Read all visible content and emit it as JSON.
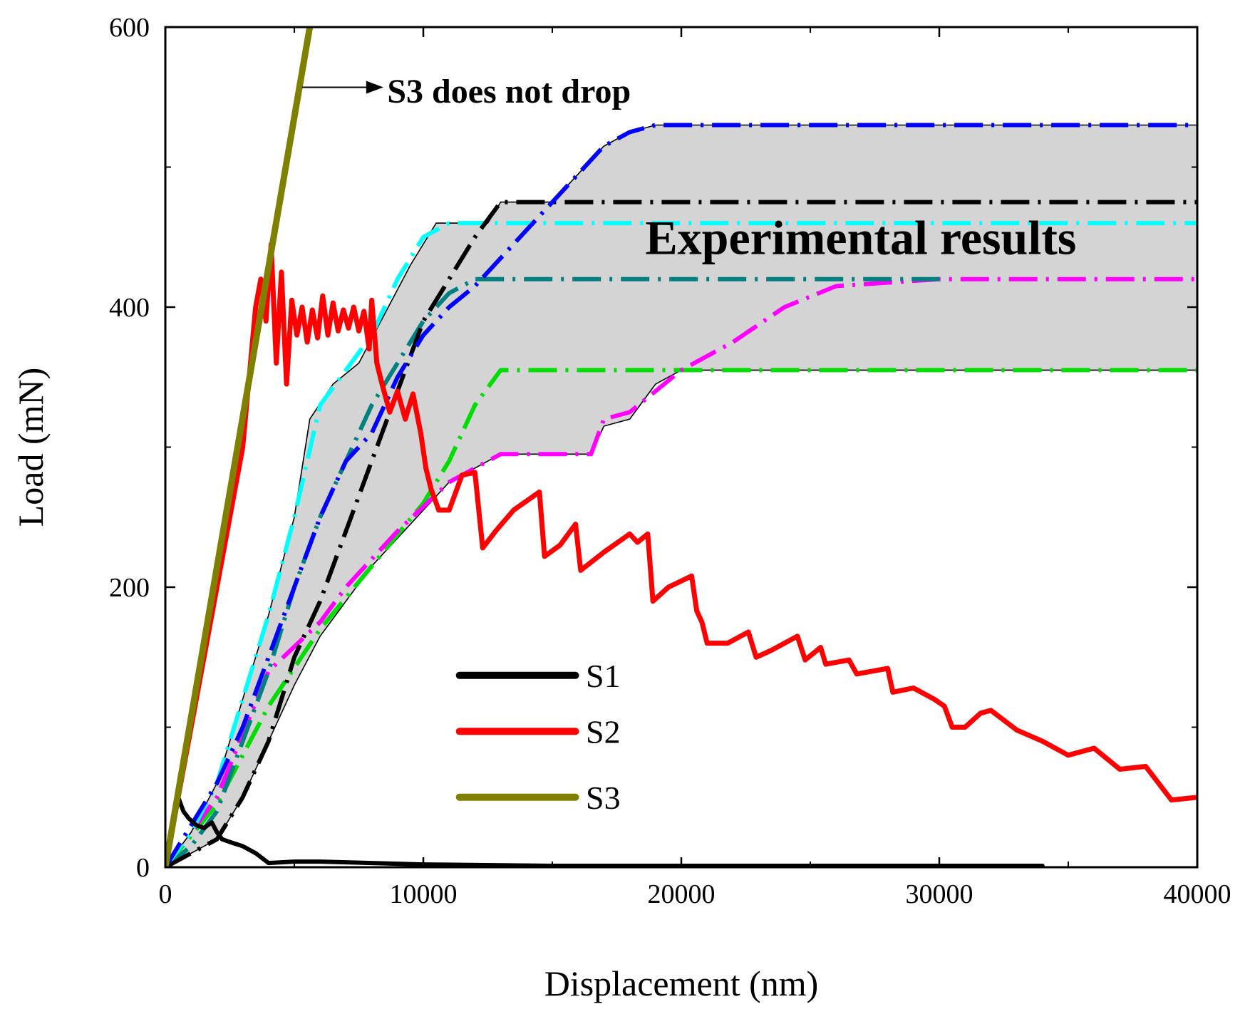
{
  "chart_data": {
    "type": "line",
    "xlabel": "Displacement (nm)",
    "ylabel": "Load (mN)",
    "xlim": [
      0,
      40000
    ],
    "ylim": [
      0,
      600
    ],
    "x_ticks": [
      0,
      10000,
      20000,
      30000,
      40000
    ],
    "x_tick_labels": [
      "0",
      "10000",
      "20000",
      "30000",
      "40000"
    ],
    "y_ticks": [
      0,
      200,
      400,
      600
    ],
    "y_tick_labels": [
      "0",
      "200",
      "400",
      "600"
    ],
    "grid": false,
    "legend": {
      "position": "bottom-center",
      "entries": [
        "S1",
        "S2",
        "S3"
      ]
    },
    "annotations": {
      "s3_note": "S3 does not drop",
      "band_label": "Experimental results"
    },
    "series": [
      {
        "name": "S1",
        "color": "#000000",
        "style": "solid",
        "in_legend": true,
        "points": [
          [
            0,
            0
          ],
          [
            300,
            30
          ],
          [
            500,
            50
          ],
          [
            700,
            40
          ],
          [
            900,
            35
          ],
          [
            1200,
            30
          ],
          [
            1500,
            28
          ],
          [
            1800,
            32
          ],
          [
            2000,
            25
          ],
          [
            2200,
            20
          ],
          [
            2500,
            18
          ],
          [
            3000,
            15
          ],
          [
            3500,
            10
          ],
          [
            4000,
            3
          ],
          [
            5000,
            4
          ],
          [
            6000,
            4
          ],
          [
            8000,
            3
          ],
          [
            10000,
            2
          ],
          [
            15000,
            1
          ],
          [
            20000,
            1
          ],
          [
            25000,
            1
          ],
          [
            30000,
            1
          ],
          [
            34000,
            1
          ]
        ]
      },
      {
        "name": "S2",
        "color": "#ff0000",
        "style": "solid",
        "in_legend": true,
        "points": [
          [
            0,
            0
          ],
          [
            1000,
            100
          ],
          [
            2000,
            200
          ],
          [
            2500,
            250
          ],
          [
            3000,
            300
          ],
          [
            3300,
            360
          ],
          [
            3500,
            400
          ],
          [
            3700,
            420
          ],
          [
            3900,
            390
          ],
          [
            4100,
            445
          ],
          [
            4300,
            360
          ],
          [
            4500,
            425
          ],
          [
            4700,
            345
          ],
          [
            4900,
            405
          ],
          [
            5100,
            380
          ],
          [
            5300,
            400
          ],
          [
            5500,
            375
          ],
          [
            5700,
            398
          ],
          [
            5900,
            378
          ],
          [
            6100,
            408
          ],
          [
            6300,
            380
          ],
          [
            6500,
            403
          ],
          [
            6700,
            383
          ],
          [
            6900,
            398
          ],
          [
            7100,
            385
          ],
          [
            7300,
            400
          ],
          [
            7500,
            383
          ],
          [
            7700,
            397
          ],
          [
            7900,
            370
          ],
          [
            8000,
            405
          ],
          [
            8200,
            360
          ],
          [
            8400,
            345
          ],
          [
            8700,
            325
          ],
          [
            9000,
            340
          ],
          [
            9300,
            320
          ],
          [
            9600,
            338
          ],
          [
            9900,
            310
          ],
          [
            10100,
            285
          ],
          [
            10300,
            270
          ],
          [
            10600,
            255
          ],
          [
            11000,
            255
          ],
          [
            11500,
            280
          ],
          [
            12000,
            282
          ],
          [
            12300,
            228
          ],
          [
            12800,
            240
          ],
          [
            13500,
            255
          ],
          [
            14500,
            268
          ],
          [
            14700,
            222
          ],
          [
            15300,
            230
          ],
          [
            15900,
            245
          ],
          [
            16100,
            212
          ],
          [
            17000,
            225
          ],
          [
            18000,
            238
          ],
          [
            18300,
            232
          ],
          [
            18700,
            238
          ],
          [
            18900,
            190
          ],
          [
            19500,
            200
          ],
          [
            20400,
            208
          ],
          [
            20600,
            183
          ],
          [
            20800,
            175
          ],
          [
            21000,
            160
          ],
          [
            21800,
            160
          ],
          [
            22600,
            168
          ],
          [
            22900,
            150
          ],
          [
            23500,
            155
          ],
          [
            24500,
            165
          ],
          [
            24800,
            148
          ],
          [
            25400,
            157
          ],
          [
            25600,
            145
          ],
          [
            26500,
            148
          ],
          [
            26800,
            138
          ],
          [
            27400,
            140
          ],
          [
            28000,
            142
          ],
          [
            28200,
            125
          ],
          [
            29000,
            128
          ],
          [
            29800,
            120
          ],
          [
            30200,
            115
          ],
          [
            30500,
            100
          ],
          [
            31000,
            100
          ],
          [
            31600,
            110
          ],
          [
            32000,
            112
          ],
          [
            33000,
            98
          ],
          [
            34000,
            90
          ],
          [
            35000,
            80
          ],
          [
            36000,
            85
          ],
          [
            37000,
            70
          ],
          [
            38000,
            72
          ],
          [
            39000,
            48
          ],
          [
            40000,
            50
          ]
        ]
      },
      {
        "name": "S3",
        "color": "#808000",
        "style": "solid",
        "in_legend": true,
        "points": [
          [
            0,
            0
          ],
          [
            5600,
            600
          ]
        ]
      },
      {
        "name": "Exp-blue",
        "color": "#0000ff",
        "style": "dashdot",
        "in_legend": false,
        "points": [
          [
            0,
            0
          ],
          [
            2000,
            60
          ],
          [
            3000,
            100
          ],
          [
            4000,
            150
          ],
          [
            5000,
            200
          ],
          [
            6000,
            250
          ],
          [
            7000,
            290
          ],
          [
            8000,
            310
          ],
          [
            9000,
            350
          ],
          [
            10000,
            380
          ],
          [
            11000,
            400
          ],
          [
            12000,
            415
          ],
          [
            13000,
            435
          ],
          [
            14000,
            455
          ],
          [
            15000,
            475
          ],
          [
            16000,
            495
          ],
          [
            17000,
            515
          ],
          [
            18000,
            525
          ],
          [
            19000,
            530
          ],
          [
            25000,
            530
          ],
          [
            40000,
            530
          ]
        ]
      },
      {
        "name": "Exp-black",
        "color": "#000000",
        "style": "dashdot",
        "in_legend": false,
        "points": [
          [
            0,
            0
          ],
          [
            2000,
            20
          ],
          [
            3000,
            50
          ],
          [
            4000,
            90
          ],
          [
            5000,
            150
          ],
          [
            6000,
            190
          ],
          [
            7000,
            240
          ],
          [
            8000,
            290
          ],
          [
            9000,
            340
          ],
          [
            10000,
            390
          ],
          [
            11000,
            420
          ],
          [
            12000,
            450
          ],
          [
            13000,
            475
          ],
          [
            15000,
            475
          ],
          [
            20000,
            475
          ],
          [
            40000,
            475
          ]
        ]
      },
      {
        "name": "Exp-cyan",
        "color": "#00ffff",
        "style": "dashdot",
        "in_legend": false,
        "points": [
          [
            0,
            0
          ],
          [
            1000,
            25
          ],
          [
            2000,
            60
          ],
          [
            3000,
            120
          ],
          [
            4000,
            180
          ],
          [
            5000,
            250
          ],
          [
            6000,
            330
          ],
          [
            7000,
            355
          ],
          [
            8000,
            380
          ],
          [
            9000,
            420
          ],
          [
            10000,
            450
          ],
          [
            11000,
            460
          ],
          [
            15000,
            460
          ],
          [
            20000,
            460
          ],
          [
            40000,
            460
          ]
        ]
      },
      {
        "name": "Exp-teal",
        "color": "#008080",
        "style": "dashdot",
        "in_legend": false,
        "points": [
          [
            0,
            0
          ],
          [
            1000,
            15
          ],
          [
            2000,
            40
          ],
          [
            3000,
            90
          ],
          [
            4000,
            140
          ],
          [
            5000,
            200
          ],
          [
            6000,
            250
          ],
          [
            7000,
            290
          ],
          [
            8000,
            330
          ],
          [
            9000,
            360
          ],
          [
            10000,
            390
          ],
          [
            11000,
            410
          ],
          [
            12000,
            420
          ],
          [
            20000,
            420
          ],
          [
            30000,
            420
          ]
        ]
      },
      {
        "name": "Exp-magenta",
        "color": "#ff00ff",
        "style": "dashdot",
        "in_legend": false,
        "points": [
          [
            0,
            0
          ],
          [
            2000,
            50
          ],
          [
            4000,
            140
          ],
          [
            6000,
            175
          ],
          [
            7000,
            200
          ],
          [
            9000,
            240
          ],
          [
            11000,
            275
          ],
          [
            13000,
            295
          ],
          [
            16500,
            295
          ],
          [
            17000,
            320
          ],
          [
            18000,
            325
          ],
          [
            19000,
            340
          ],
          [
            20000,
            355
          ],
          [
            22000,
            375
          ],
          [
            24000,
            400
          ],
          [
            26000,
            415
          ],
          [
            30000,
            420
          ],
          [
            40000,
            420
          ]
        ]
      },
      {
        "name": "Exp-green",
        "color": "#00dd00",
        "style": "dashdot",
        "in_legend": false,
        "points": [
          [
            0,
            0
          ],
          [
            2000,
            45
          ],
          [
            4000,
            115
          ],
          [
            6000,
            170
          ],
          [
            8000,
            215
          ],
          [
            10000,
            260
          ],
          [
            11000,
            290
          ],
          [
            12000,
            330
          ],
          [
            13000,
            355
          ],
          [
            15000,
            355
          ],
          [
            20000,
            355
          ],
          [
            40000,
            355
          ]
        ]
      }
    ],
    "band": {
      "name": "Experimental results range",
      "fill": "#d4d4d4",
      "upper": [
        [
          0,
          0
        ],
        [
          1000,
          25
        ],
        [
          2000,
          60
        ],
        [
          3000,
          120
        ],
        [
          4000,
          180
        ],
        [
          5000,
          250
        ],
        [
          5600,
          320
        ],
        [
          6500,
          345
        ],
        [
          7500,
          360
        ],
        [
          8500,
          395
        ],
        [
          9500,
          430
        ],
        [
          10500,
          460
        ],
        [
          12500,
          460
        ],
        [
          13000,
          475
        ],
        [
          15000,
          475
        ],
        [
          16000,
          495
        ],
        [
          17000,
          515
        ],
        [
          18000,
          525
        ],
        [
          19000,
          530
        ],
        [
          40000,
          530
        ]
      ],
      "lower": [
        [
          0,
          0
        ],
        [
          2000,
          20
        ],
        [
          3000,
          50
        ],
        [
          4000,
          90
        ],
        [
          5000,
          130
        ],
        [
          6000,
          165
        ],
        [
          8000,
          215
        ],
        [
          10000,
          255
        ],
        [
          11000,
          275
        ],
        [
          13000,
          295
        ],
        [
          16500,
          295
        ],
        [
          17000,
          315
        ],
        [
          18000,
          320
        ],
        [
          19000,
          345
        ],
        [
          20000,
          355
        ],
        [
          40000,
          355
        ]
      ]
    }
  }
}
